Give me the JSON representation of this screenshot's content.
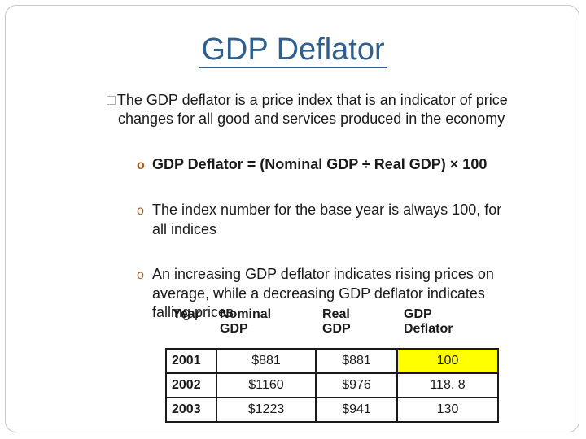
{
  "title": "GDP Deflator",
  "bullet_mark": "□",
  "main_bullet": {
    "line1": "The GDP deflator is a price index that is an indicator of price",
    "line2": "changes for all good and services produced in the economy"
  },
  "sub_mark": "o",
  "sub_bullets": [
    {
      "line1": "GDP Deflator = (Nominal GDP ÷ Real GDP) × 100"
    },
    {
      "line1": "The index number for the base year is always 100, for",
      "line2": "all indices"
    },
    {
      "line1": "An increasing GDP deflator indicates rising prices on",
      "line2": "average, while a decreasing GDP deflator indicates",
      "line3": "falling prices"
    }
  ],
  "table": {
    "headers": [
      {
        "line1": "Year",
        "line2": ""
      },
      {
        "line1": "Nominal",
        "line2": "GDP"
      },
      {
        "line1": "Real",
        "line2": "GDP"
      },
      {
        "line1": "GDP",
        "line2": "Deflator"
      }
    ],
    "rows": [
      [
        "2001",
        "$881",
        "$881",
        "100"
      ],
      [
        "2002",
        "$1160",
        "$976",
        "118. 8"
      ],
      [
        "2003",
        "$1223",
        "$941",
        "130"
      ]
    ],
    "highlight_color": "#ffff00"
  }
}
